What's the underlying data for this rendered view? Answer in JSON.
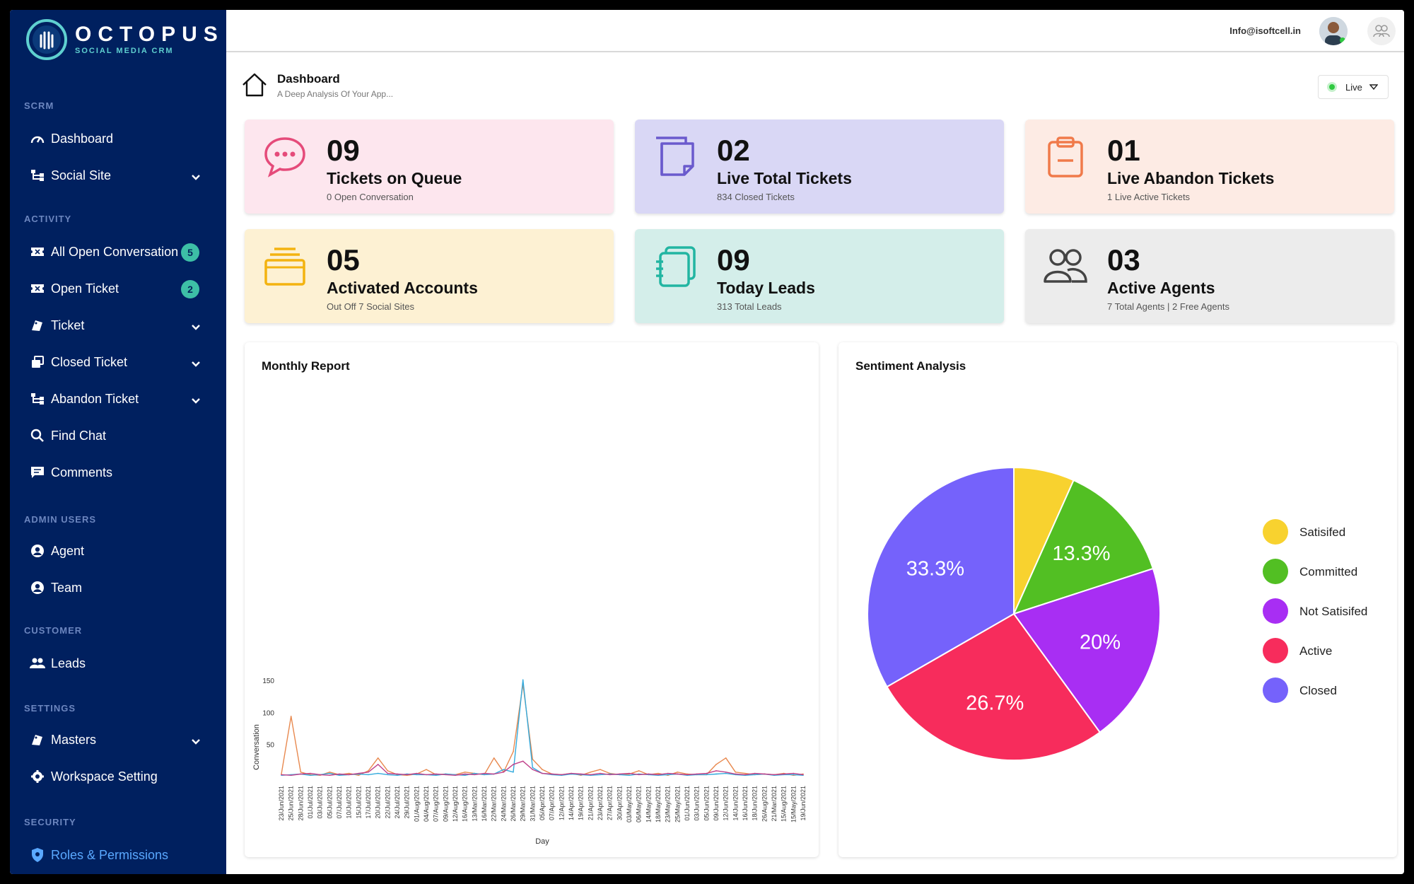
{
  "brand": {
    "name": "OCTOPUS",
    "tagline": "SOCIAL MEDIA CRM"
  },
  "sidebar": {
    "sections": [
      {
        "title": "SCRM",
        "items": [
          {
            "label": "Dashboard",
            "icon": "gauge-icon"
          },
          {
            "label": "Social Site",
            "icon": "sitemap-icon",
            "dropdown": true
          }
        ]
      },
      {
        "title": "ACTIVITY",
        "items": [
          {
            "label": "All Open Conversation",
            "icon": "ticket-icon",
            "badge": "5"
          },
          {
            "label": "Open Ticket",
            "icon": "ticket-icon",
            "badge": "2"
          },
          {
            "label": "Ticket",
            "icon": "tag-icon",
            "dropdown": true
          },
          {
            "label": "Closed Ticket",
            "icon": "copy-icon",
            "dropdown": true
          },
          {
            "label": "Abandon Ticket",
            "icon": "sitemap-icon",
            "dropdown": true
          },
          {
            "label": "Find Chat",
            "icon": "search-icon"
          },
          {
            "label": "Comments",
            "icon": "comment-icon"
          }
        ]
      },
      {
        "title": "ADMIN USERS",
        "items": [
          {
            "label": "Agent",
            "icon": "user-circle-icon"
          },
          {
            "label": "Team",
            "icon": "user-circle-icon"
          }
        ]
      },
      {
        "title": "CUSTOMER",
        "items": [
          {
            "label": "Leads",
            "icon": "users-icon"
          }
        ]
      },
      {
        "title": "SETTINGS",
        "items": [
          {
            "label": "Masters",
            "icon": "tag-icon",
            "dropdown": true
          },
          {
            "label": "Workspace Setting",
            "icon": "gear-icon"
          }
        ]
      },
      {
        "title": "SECURITY",
        "items": [
          {
            "label": "Roles & Permissions",
            "icon": "shield-icon",
            "active": true
          }
        ]
      }
    ]
  },
  "header": {
    "email": "Info@isoftcell.in"
  },
  "page": {
    "title": "Dashboard",
    "subtitle": "A Deep Analysis Of Your App...",
    "status": "Live"
  },
  "cards": [
    {
      "value": "09",
      "label": "Tickets on Queue",
      "sub": "0 Open Conversation",
      "color": "#fde6ee",
      "icon": "chat-bubble-icon",
      "accent": "#e54b7a"
    },
    {
      "value": "02",
      "label": "Live Total Tickets",
      "sub": "834 Closed Tickets",
      "color": "#d9d7f5",
      "icon": "stacked-notes-icon",
      "accent": "#6a5acd"
    },
    {
      "value": "01",
      "label": "Live Abandon Tickets",
      "sub": "1 Live Active Tickets",
      "color": "#fdebe4",
      "icon": "clipboard-icon",
      "accent": "#f07a4a"
    },
    {
      "value": "05",
      "label": "Activated Accounts",
      "sub": "Out Off 7 Social Sites",
      "color": "#fdf1d3",
      "icon": "layers-icon",
      "accent": "#f3b310"
    },
    {
      "value": "09",
      "label": "Today Leads",
      "sub": "313 Total Leads",
      "color": "#d4eeea",
      "icon": "notebook-icon",
      "accent": "#22b5a2"
    },
    {
      "value": "03",
      "label": "Active Agents",
      "sub": "7 Total Agents | 2 Free Agents",
      "color": "#ececec",
      "icon": "people-icon",
      "accent": "#444444"
    }
  ],
  "chart_data": [
    {
      "type": "line",
      "title": "Monthly Report",
      "xlabel": "Day",
      "ylabel": "Conversation",
      "yticks": [
        50,
        100,
        150
      ],
      "ylim": [
        0,
        160
      ],
      "x": [
        "23/Jun/2021",
        "25/Jun/2021",
        "28/Jun/2021",
        "01/Jul/2021",
        "03/Jul/2021",
        "05/Jul/2021",
        "07/Jul/2021",
        "10/Jul/2021",
        "15/Jul/2021",
        "17/Jul/2021",
        "20/Jul/2021",
        "22/Jul/2021",
        "24/Jul/2021",
        "29/Jul/2021",
        "01/Aug/2021",
        "04/Aug/2021",
        "07/Aug/2021",
        "09/Aug/2021",
        "12/Aug/2021",
        "16/Aug/2021",
        "13/Mar/2021",
        "16/Mar/2021",
        "22/Mar/2021",
        "24/Mar/2021",
        "26/Mar/2021",
        "29/Mar/2021",
        "31/Mar/2021",
        "05/Apr/2021",
        "07/Apr/2021",
        "12/Apr/2021",
        "14/Apr/2021",
        "19/Apr/2021",
        "21/Apr/2021",
        "23/Apr/2021",
        "27/Apr/2021",
        "30/Apr/2021",
        "03/May/2021",
        "06/May/2021",
        "14/May/2021",
        "18/May/2021",
        "23/May/2021",
        "25/May/2021",
        "01/Jun/2021",
        "03/Jun/2021",
        "05/Jun/2021",
        "09/Jun/2021",
        "12/Jun/2021",
        "14/Jun/2021",
        "16/Jun/2021",
        "18/Jun/2021",
        "26/Aug/2021",
        "21/Mar/2021",
        "15/Aug/2021",
        "15/May/2021",
        "19/Jun/2021"
      ],
      "series": [
        {
          "color": "#e8894f",
          "values": [
            5,
            95,
            8,
            4,
            3,
            8,
            4,
            6,
            3,
            10,
            30,
            10,
            4,
            3,
            5,
            12,
            4,
            5,
            4,
            8,
            6,
            4,
            30,
            8,
            40,
            145,
            28,
            12,
            5,
            4,
            6,
            3,
            8,
            12,
            6,
            4,
            5,
            10,
            4,
            6,
            3,
            8,
            5,
            4,
            4,
            20,
            30,
            8,
            6,
            4,
            5,
            4,
            6,
            3,
            5
          ]
        },
        {
          "color": "#33aadd",
          "values": [
            3,
            4,
            5,
            3,
            4,
            6,
            3,
            4,
            5,
            4,
            6,
            4,
            3,
            5,
            4,
            4,
            3,
            5,
            4,
            3,
            6,
            4,
            5,
            12,
            8,
            152,
            15,
            6,
            4,
            3,
            5,
            4,
            3,
            4,
            5,
            4,
            3,
            5,
            4,
            3,
            4,
            5,
            3,
            4,
            4,
            5,
            6,
            4,
            3,
            4,
            5,
            3,
            4,
            4,
            3
          ]
        },
        {
          "color": "#c0408a",
          "values": [
            4,
            3,
            5,
            6,
            4,
            3,
            5,
            4,
            6,
            8,
            20,
            6,
            5,
            4,
            6,
            4,
            5,
            4,
            3,
            5,
            4,
            6,
            5,
            8,
            20,
            25,
            12,
            6,
            5,
            4,
            6,
            5,
            4,
            6,
            4,
            5,
            6,
            4,
            5,
            4,
            6,
            5,
            4,
            5,
            6,
            10,
            8,
            5,
            4,
            6,
            5,
            4,
            5,
            6,
            4
          ]
        }
      ]
    },
    {
      "type": "pie",
      "title": "Sentiment Analysis",
      "legend": "right",
      "slices": [
        {
          "name": "Satisifed",
          "value": 6.7,
          "label": "",
          "color": "#f8d22f"
        },
        {
          "name": "Committed",
          "value": 13.3,
          "label": "13.3%",
          "color": "#52bf23"
        },
        {
          "name": "Not Satisifed",
          "value": 20,
          "label": "20%",
          "color": "#a82ef3"
        },
        {
          "name": "Active",
          "value": 26.7,
          "label": "26.7%",
          "color": "#f72c5c"
        },
        {
          "name": "Closed",
          "value": 33.3,
          "label": "33.3%",
          "color": "#7562fb"
        }
      ]
    }
  ]
}
